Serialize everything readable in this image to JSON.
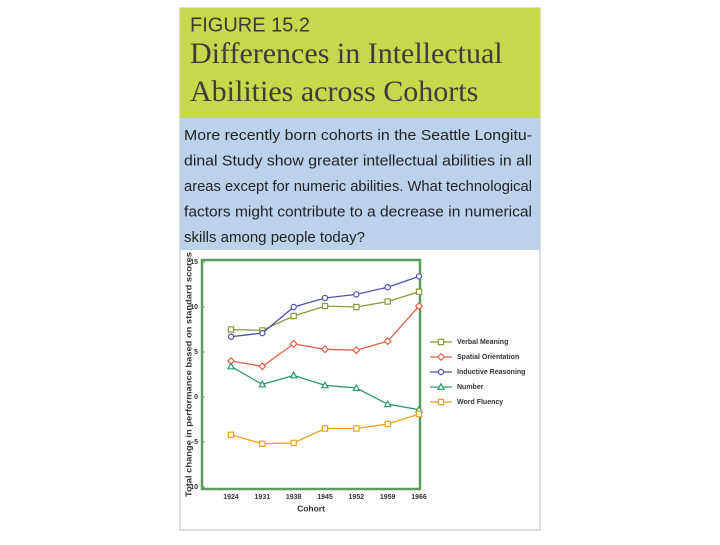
{
  "header": {
    "label": "FIGURE 15.2",
    "title_lines": [
      "Differences in Intellectual",
      "Abilities across Cohorts"
    ]
  },
  "caption_lines": [
    "More recently born cohorts in the Seattle Longitu-",
    "dinal Study show greater intellectual abilities in all",
    "areas except for numeric abilities. What technological",
    "factors might contribute to a decrease in numerical",
    "skills among people today?"
  ],
  "chart_data": {
    "type": "line",
    "x_label": "Cohort",
    "y_label": "Total change in performance based on standard scores",
    "categories": [
      "1924",
      "1931",
      "1938",
      "1945",
      "1952",
      "1959",
      "1966"
    ],
    "ylim": [
      -10,
      15
    ],
    "yticks": [
      -10,
      -5,
      0,
      5,
      10,
      15
    ],
    "legend": "right",
    "series": [
      {
        "name": "Verbal Meaning",
        "color": "#8a9a3a",
        "marker": "square",
        "values": [
          7.5,
          7.4,
          9,
          10.1,
          10,
          10.6,
          11.7
        ]
      },
      {
        "name": "Spatial Orientation",
        "color": "#e0604a",
        "marker": "diamond",
        "values": [
          4,
          3.4,
          5.9,
          5.3,
          5.2,
          6.2,
          10.1
        ]
      },
      {
        "name": "Inductive Reasoning",
        "color": "#5050a8",
        "marker": "circle",
        "values": [
          6.7,
          7.1,
          10,
          11,
          11.4,
          12.2,
          13.4
        ]
      },
      {
        "name": "Number",
        "color": "#2a9a70",
        "marker": "triangle",
        "values": [
          3.4,
          1.4,
          2.4,
          1.3,
          1,
          -0.8,
          -1.4
        ]
      },
      {
        "name": "Word Fluency",
        "color": "#f0a020",
        "marker": "square",
        "values": [
          -4.2,
          -5.2,
          -5.1,
          -3.5,
          -3.5,
          -3,
          -1.9
        ]
      }
    ]
  }
}
